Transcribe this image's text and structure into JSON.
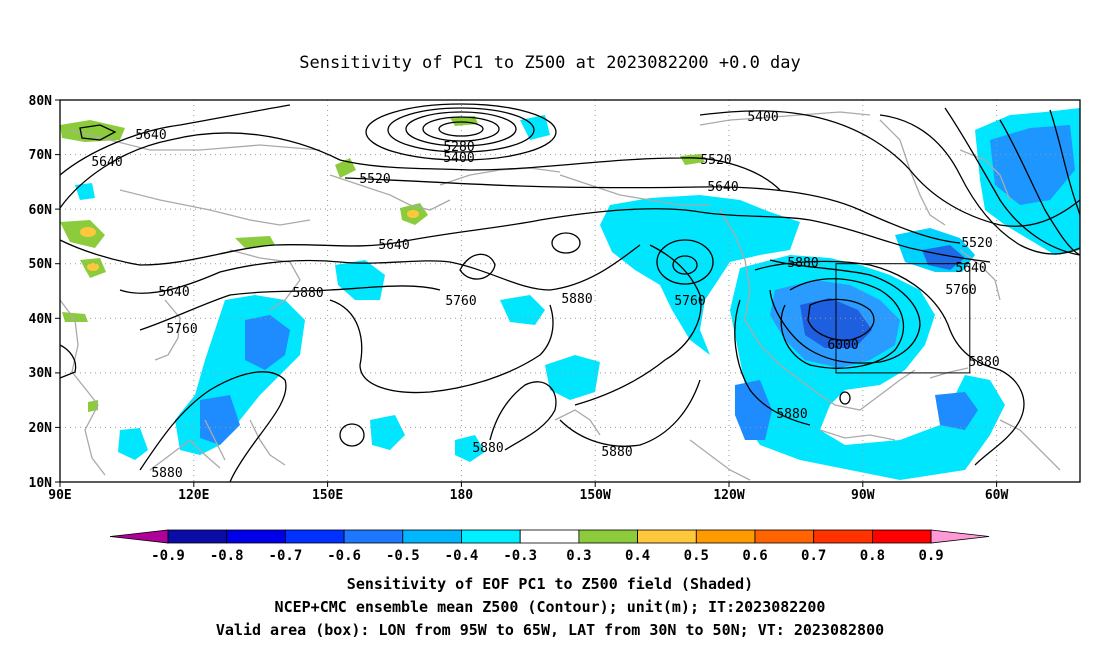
{
  "title": "Sensitivity of PC1 to Z500 at 2023082200 +0.0 day",
  "map": {
    "lon_range": [
      "90E",
      "40W"
    ],
    "lat_range": [
      "10N",
      "80N"
    ],
    "lat_ticks": [
      "80N",
      "70N",
      "60N",
      "50N",
      "40N",
      "30N",
      "20N",
      "10N"
    ],
    "lon_ticks": [
      "90E",
      "120E",
      "150E",
      "180",
      "150W",
      "120W",
      "90W",
      "60W"
    ],
    "grid": true,
    "coastline_color": "#b0b0b0",
    "contour_color": "#000000"
  },
  "contour_labels": [
    {
      "id": "c5640a",
      "text": "5640"
    },
    {
      "id": "c5640b",
      "text": "5640"
    },
    {
      "id": "c5280",
      "text": "5280"
    },
    {
      "id": "c5400a",
      "text": "5400"
    },
    {
      "id": "c5400b",
      "text": "5400"
    },
    {
      "id": "c5520a",
      "text": "5520"
    },
    {
      "id": "c5520b",
      "text": "5520"
    },
    {
      "id": "c5640c",
      "text": "5640"
    },
    {
      "id": "c5520c",
      "text": "5520"
    },
    {
      "id": "c5640d",
      "text": "5640"
    },
    {
      "id": "c5640e",
      "text": "5640"
    },
    {
      "id": "c5640f",
      "text": "5640"
    },
    {
      "id": "c5880a",
      "text": "5880"
    },
    {
      "id": "c5760a",
      "text": "5760"
    },
    {
      "id": "c5880b",
      "text": "5880"
    },
    {
      "id": "c5760b",
      "text": "5760"
    },
    {
      "id": "c5760c",
      "text": "5760"
    },
    {
      "id": "c5880c",
      "text": "5880"
    },
    {
      "id": "c5760d",
      "text": "5760"
    },
    {
      "id": "c6000",
      "text": "6000"
    },
    {
      "id": "c5880d",
      "text": "5880"
    },
    {
      "id": "c5880e",
      "text": "5880"
    },
    {
      "id": "c5880f",
      "text": "5880"
    },
    {
      "id": "c5880g",
      "text": "5880"
    },
    {
      "id": "c5880h",
      "text": "5880"
    }
  ],
  "valid_box": {
    "lon_from": "95W",
    "lon_to": "65W",
    "lat_from": "30N",
    "lat_to": "50N"
  },
  "colorbar": {
    "ticks": [
      "-0.9",
      "-0.8",
      "-0.7",
      "-0.6",
      "-0.5",
      "-0.4",
      "-0.3",
      "0.3",
      "0.4",
      "0.5",
      "0.6",
      "0.7",
      "0.8",
      "0.9"
    ],
    "colors": [
      "#b0009a",
      "#0b0ba6",
      "#0000e8",
      "#0032ff",
      "#1e78ff",
      "#00b6ff",
      "#00f0ff",
      "#ffffff",
      "#8ccc3c",
      "#ffc83c",
      "#ff9a00",
      "#ff6400",
      "#ff3200",
      "#ff0000",
      "#ff9ad6"
    ]
  },
  "captions": {
    "line1": "Sensitivity of EOF PC1 to Z500 field (Shaded)",
    "line2": "NCEP+CMC ensemble mean Z500 (Contour); unit(m); IT:2023082200",
    "line3": "Valid area (box): LON from 95W to 65W, LAT from 30N to 50N; VT: 2023082800"
  }
}
